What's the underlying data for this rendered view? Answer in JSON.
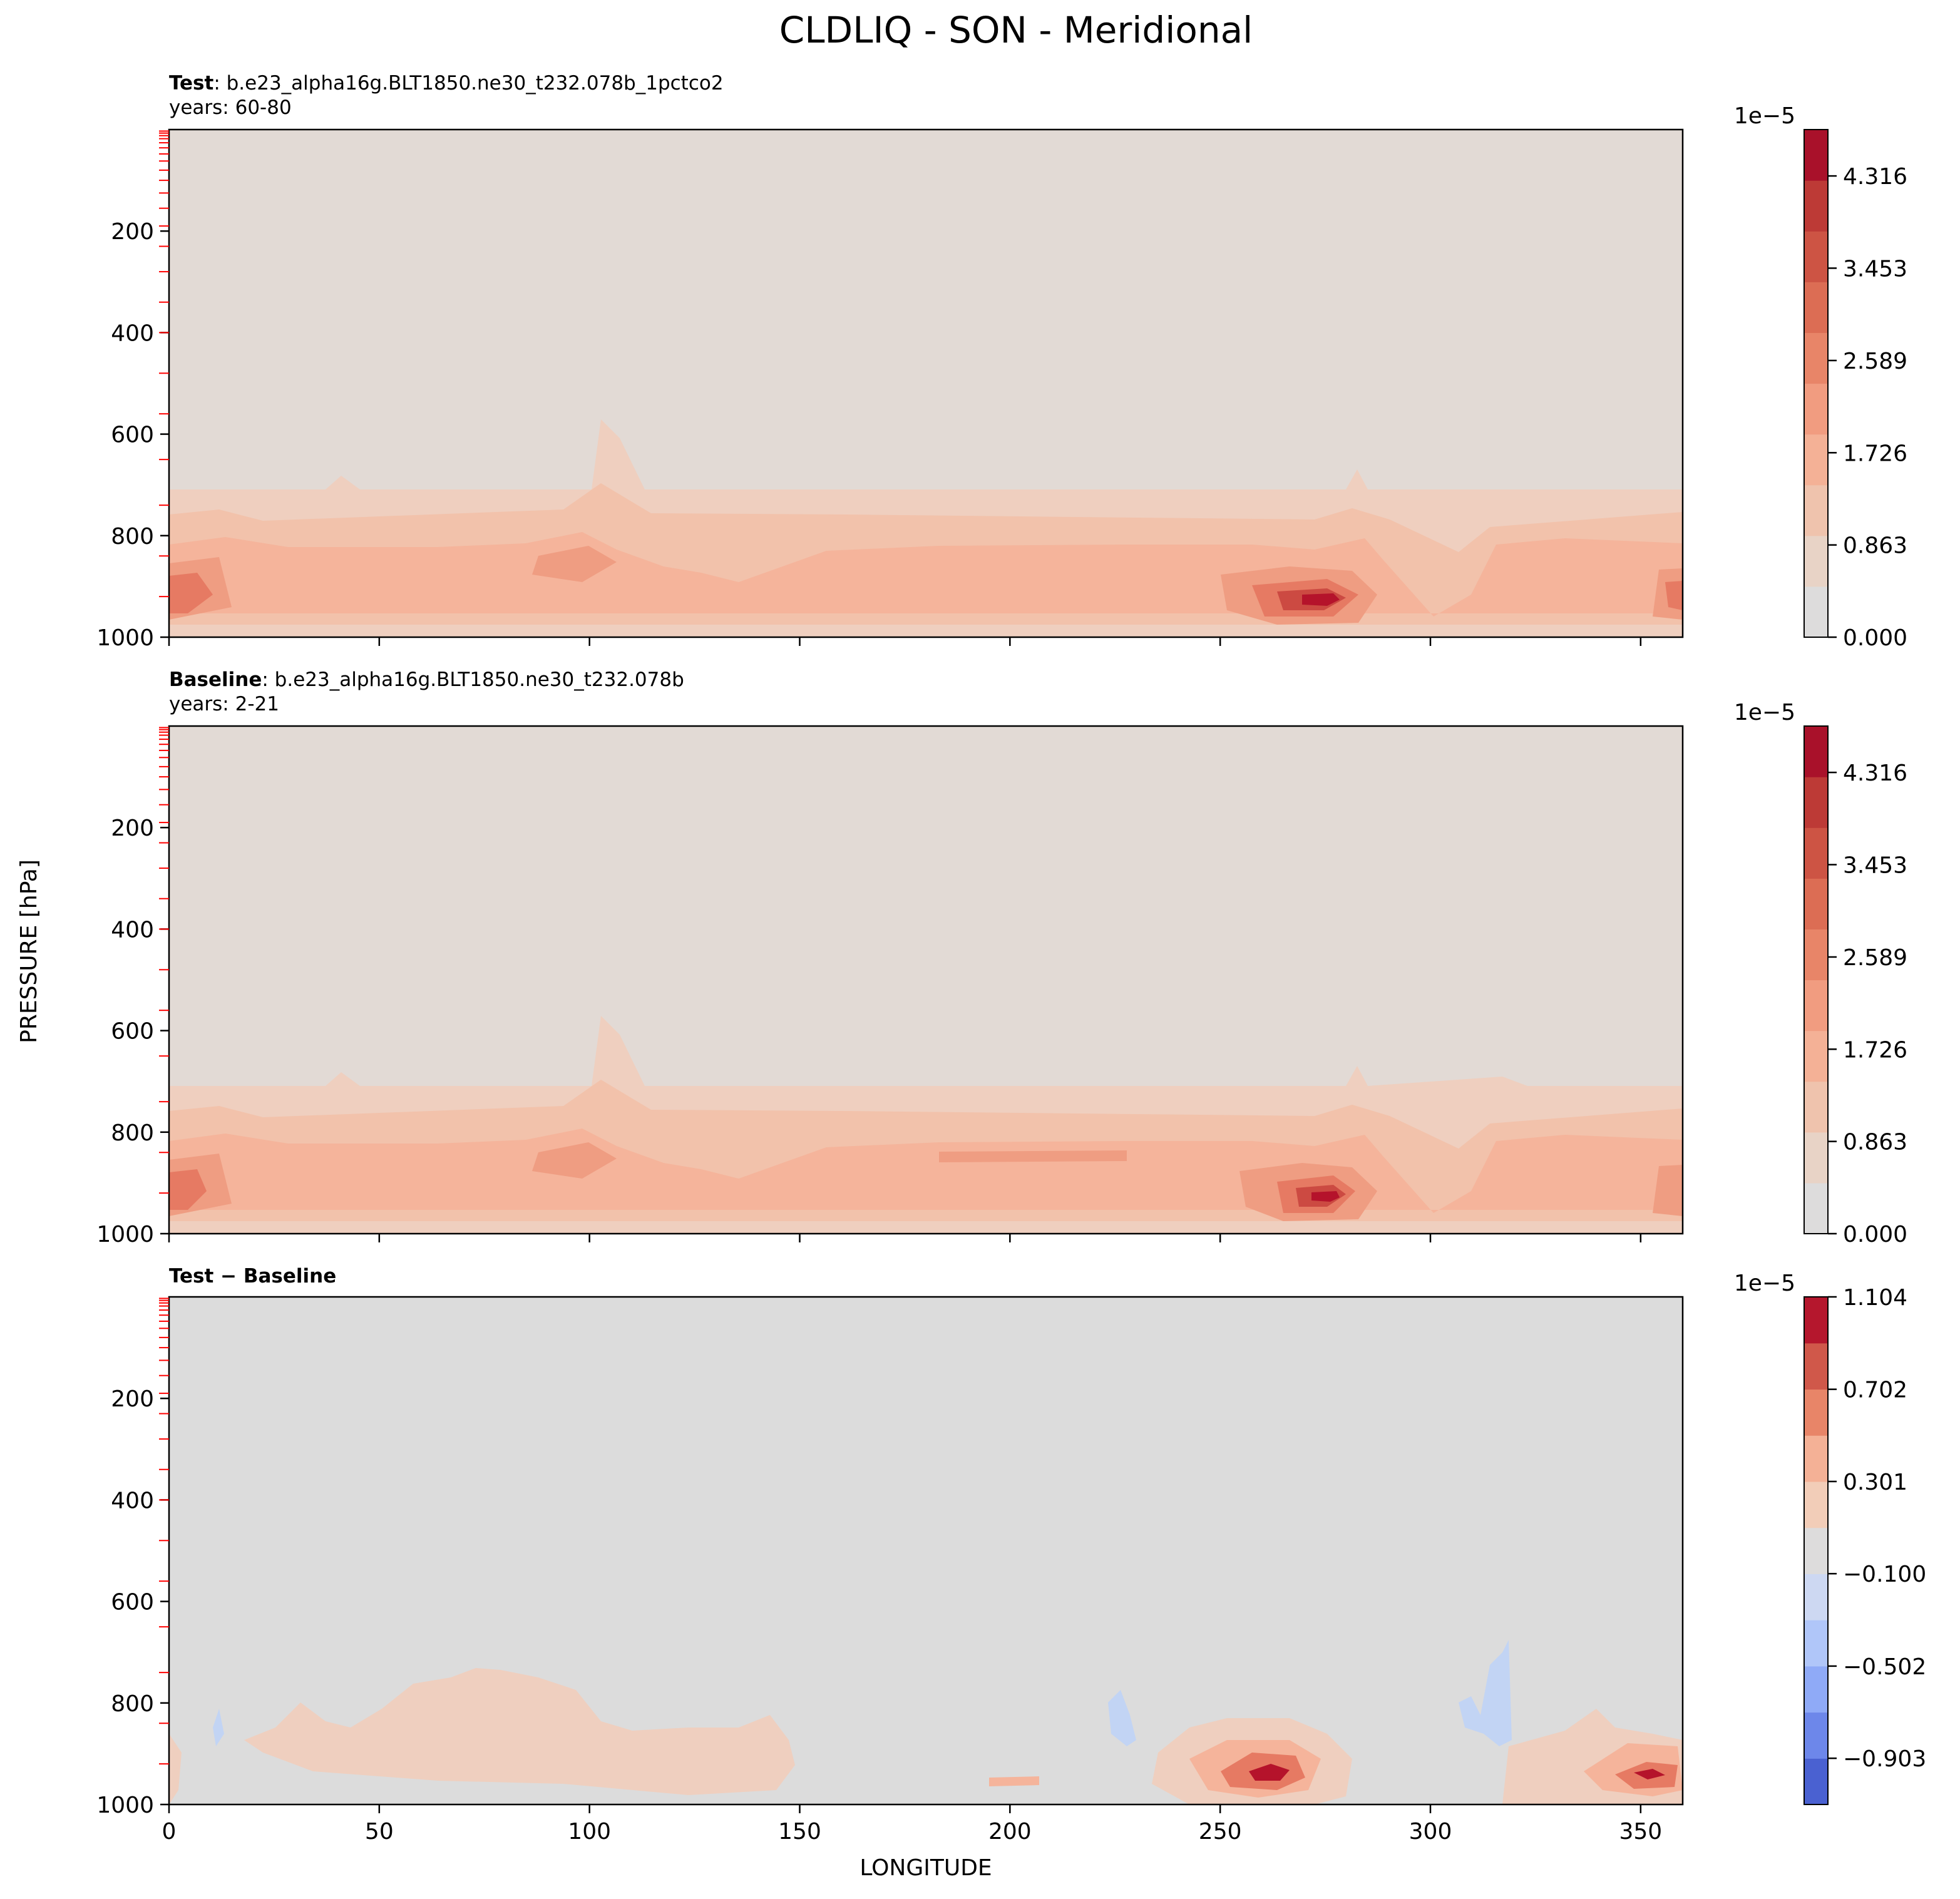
{
  "figure": {
    "title": "CLDLIQ - SON - Meridional"
  },
  "shared": {
    "ylabel": "PRESSURE [hPa]",
    "xlabel": "LONGITUDE"
  },
  "panels": [
    {
      "id": "test",
      "label_bold": "Test",
      "label_rest": ": b.e23_alpha16g.BLT1850.ne30_t232.078b_1pctco2",
      "years": "years: 60-80",
      "cbar": {
        "exponent": "1e−5",
        "ticks": [
          "0.000",
          "0.863",
          "1.726",
          "2.589",
          "3.453",
          "4.316"
        ]
      }
    },
    {
      "id": "baseline",
      "label_bold": "Baseline",
      "label_rest": ": b.e23_alpha16g.BLT1850.ne30_t232.078b",
      "years": "years: 2-21",
      "cbar": {
        "exponent": "1e−5",
        "ticks": [
          "0.000",
          "0.863",
          "1.726",
          "2.589",
          "3.453",
          "4.316"
        ]
      }
    },
    {
      "id": "diff",
      "label_bold": "Test − Baseline",
      "label_rest": "",
      "years": "",
      "cbar": {
        "exponent": "1e−5",
        "ticks": [
          "−0.903",
          "−0.502",
          "−0.100",
          "0.301",
          "0.702",
          "1.104"
        ]
      }
    }
  ],
  "chart_data": [
    {
      "type": "heatmap",
      "title": "Test : b.e23_alpha16g.BLT1850.ne30_t232.078b_1pctco2",
      "ylabel": "PRESSURE [hPa]",
      "xlim": [
        0,
        360
      ],
      "ylim": [
        1000,
        0
      ],
      "yticks": [
        200,
        400,
        600,
        800,
        1000
      ],
      "y_inverted": true,
      "colorbar": {
        "min": 0.0,
        "max": 4.75,
        "scale": "1e-5",
        "ticks": [
          0.0,
          0.863,
          1.726,
          2.589,
          3.453,
          4.316
        ],
        "colormap": "coolwarm"
      },
      "features": [
        {
          "description": "low-level cloud liquid band",
          "p_range": [
            700,
            1000
          ],
          "x_range": [
            0,
            360
          ]
        },
        {
          "lon": 5,
          "p": 920,
          "value": 3.6
        },
        {
          "lon": 95,
          "p": 850,
          "value": 2.8
        },
        {
          "lon": 272,
          "p": 920,
          "value": 4.5
        },
        {
          "lon": 355,
          "p": 920,
          "value": 3.3
        }
      ]
    },
    {
      "type": "heatmap",
      "title": "Baseline : b.e23_alpha16g.BLT1850.ne30_t232.078b",
      "ylabel": "PRESSURE [hPa]",
      "xlim": [
        0,
        360
      ],
      "ylim": [
        1000,
        0
      ],
      "yticks": [
        200,
        400,
        600,
        800,
        1000
      ],
      "y_inverted": true,
      "colorbar": {
        "min": 0.0,
        "max": 4.75,
        "scale": "1e-5",
        "ticks": [
          0.0,
          0.863,
          1.726,
          2.589,
          3.453,
          4.316
        ],
        "colormap": "coolwarm"
      },
      "features": [
        {
          "description": "low-level cloud liquid band",
          "p_range": [
            700,
            1000
          ],
          "x_range": [
            0,
            360
          ]
        },
        {
          "lon": 5,
          "p": 920,
          "value": 3.3
        },
        {
          "lon": 95,
          "p": 850,
          "value": 2.7
        },
        {
          "lon": 272,
          "p": 920,
          "value": 4.1
        },
        {
          "lon": 355,
          "p": 920,
          "value": 3.0
        }
      ]
    },
    {
      "type": "heatmap",
      "title": "Test − Baseline",
      "xlabel": "LONGITUDE",
      "ylabel": "PRESSURE [hPa]",
      "xlim": [
        0,
        360
      ],
      "ylim": [
        1000,
        0
      ],
      "xticks": [
        0,
        50,
        100,
        150,
        200,
        250,
        300,
        350
      ],
      "yticks": [
        200,
        400,
        600,
        800,
        1000
      ],
      "y_inverted": true,
      "colorbar": {
        "min": -1.104,
        "max": 1.104,
        "scale": "1e-5",
        "ticks": [
          -0.903,
          -0.502,
          -0.1,
          0.301,
          0.702,
          1.104
        ],
        "colormap": "coolwarm"
      },
      "features": [
        {
          "description": "weak positive difference band",
          "lon_range": [
            20,
            145
          ],
          "p_range": [
            760,
            970
          ],
          "value": 0.15
        },
        {
          "lon": 260,
          "p": 920,
          "value": 0.95
        },
        {
          "lon": 350,
          "p": 920,
          "value": 0.85
        },
        {
          "lon": 315,
          "p": 820,
          "value": -0.3
        },
        {
          "lon": 228,
          "p": 830,
          "value": -0.25
        }
      ]
    }
  ]
}
